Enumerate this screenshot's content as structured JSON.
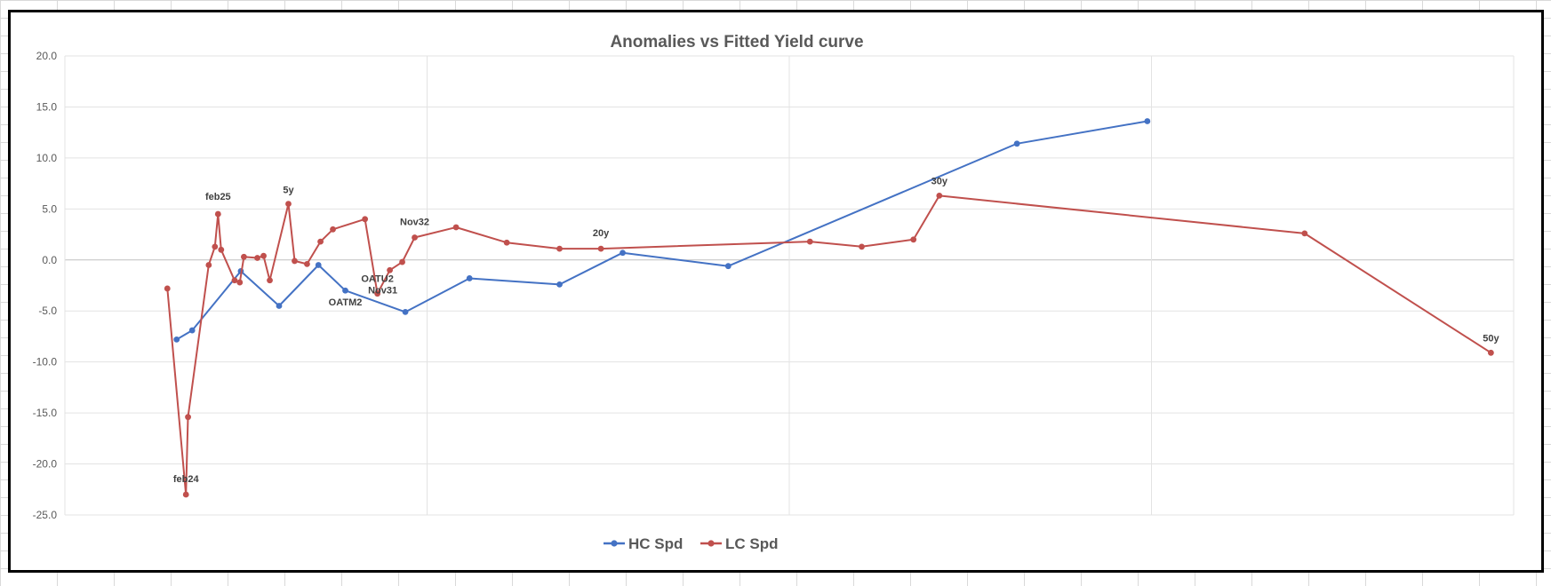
{
  "chart_data": {
    "type": "line",
    "title": "Anomalies vs Fitted Yield curve",
    "xlabel": "",
    "ylabel": "",
    "ylim": [
      -25,
      20
    ],
    "y_ticks": [
      "20.0",
      "15.0",
      "10.0",
      "5.0",
      "0.0",
      "-5.0",
      "-10.0",
      "-15.0",
      "-20.0",
      "-25.0"
    ],
    "x_axis": "unlabeled (maturity)",
    "xlim": [
      0,
      14
    ],
    "grid": true,
    "legend_position": "bottom",
    "series": [
      {
        "name": "HC Spd",
        "color": "#4472C4",
        "points": [
          {
            "x": 1.08,
            "y": -7.8
          },
          {
            "x": 1.23,
            "y": -6.9
          },
          {
            "x": 1.7,
            "y": -1.1
          },
          {
            "x": 2.07,
            "y": -4.5
          },
          {
            "x": 2.45,
            "y": -0.5
          },
          {
            "x": 2.71,
            "y": -3.0
          },
          {
            "x": 3.29,
            "y": -5.1
          },
          {
            "x": 3.91,
            "y": -1.8
          },
          {
            "x": 4.78,
            "y": -2.4
          },
          {
            "x": 5.39,
            "y": 0.7
          },
          {
            "x": 6.41,
            "y": -0.6
          },
          {
            "x": 9.2,
            "y": 11.4
          },
          {
            "x": 10.46,
            "y": 13.6
          }
        ]
      },
      {
        "name": "LC Spd",
        "color": "#C0504D",
        "points": [
          {
            "x": 0.99,
            "y": -2.8
          },
          {
            "x": 1.17,
            "y": -23.0
          },
          {
            "x": 1.19,
            "y": -15.4
          },
          {
            "x": 1.39,
            "y": -0.5
          },
          {
            "x": 1.45,
            "y": 1.3
          },
          {
            "x": 1.48,
            "y": 4.5
          },
          {
            "x": 1.51,
            "y": 1.0
          },
          {
            "x": 1.64,
            "y": -2.0
          },
          {
            "x": 1.69,
            "y": -2.2
          },
          {
            "x": 1.73,
            "y": 0.3
          },
          {
            "x": 1.86,
            "y": 0.2
          },
          {
            "x": 1.92,
            "y": 0.4
          },
          {
            "x": 1.98,
            "y": -2.0
          },
          {
            "x": 2.16,
            "y": 5.5
          },
          {
            "x": 2.22,
            "y": -0.1
          },
          {
            "x": 2.34,
            "y": -0.4
          },
          {
            "x": 2.47,
            "y": 1.8
          },
          {
            "x": 2.59,
            "y": 3.0
          },
          {
            "x": 2.9,
            "y": 4.0
          },
          {
            "x": 3.02,
            "y": -3.3
          },
          {
            "x": 3.14,
            "y": -1.0
          },
          {
            "x": 3.26,
            "y": -0.2
          },
          {
            "x": 3.38,
            "y": 2.2
          },
          {
            "x": 3.78,
            "y": 3.2
          },
          {
            "x": 4.27,
            "y": 1.7
          },
          {
            "x": 4.78,
            "y": 1.1
          },
          {
            "x": 5.18,
            "y": 1.1
          },
          {
            "x": 7.2,
            "y": 1.8
          },
          {
            "x": 7.7,
            "y": 1.3
          },
          {
            "x": 8.2,
            "y": 2.0
          },
          {
            "x": 8.45,
            "y": 6.3
          },
          {
            "x": 11.98,
            "y": 2.6
          },
          {
            "x": 13.78,
            "y": -9.1
          }
        ]
      }
    ],
    "annotations": [
      {
        "text": "feb25",
        "x": 1.48,
        "y": 4.5
      },
      {
        "text": "5y",
        "x": 2.16,
        "y": 5.5
      },
      {
        "text": "Nov32",
        "x": 3.38,
        "y": 2.2
      },
      {
        "text": "20y",
        "x": 5.18,
        "y": 1.1
      },
      {
        "text": "30y",
        "x": 8.45,
        "y": 6.3
      },
      {
        "text": "OATU2",
        "x": 3.02,
        "y": -3.3
      },
      {
        "text": "Nov31",
        "x": 3.14,
        "y": -1.0
      },
      {
        "text": "OATM2",
        "x": 2.71,
        "y": -3.0
      },
      {
        "text": "feb24",
        "x": 1.17,
        "y": -23.0
      },
      {
        "text": "50y",
        "x": 13.78,
        "y": -9.1
      }
    ]
  }
}
